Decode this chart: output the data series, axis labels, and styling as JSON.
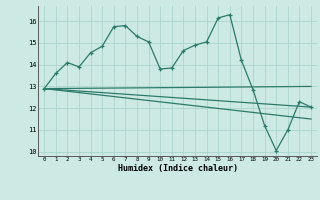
{
  "xlabel": "Humidex (Indice chaleur)",
  "bg_color": "#cce9e4",
  "grid_color": "#b0d8d0",
  "line_color": "#2d7a6a",
  "xlim": [
    -0.5,
    23.5
  ],
  "ylim": [
    9.8,
    16.7
  ],
  "yticks": [
    10,
    11,
    12,
    13,
    14,
    15,
    16
  ],
  "xticks": [
    0,
    1,
    2,
    3,
    4,
    5,
    6,
    7,
    8,
    9,
    10,
    11,
    12,
    13,
    14,
    15,
    16,
    17,
    18,
    19,
    20,
    21,
    22,
    23
  ],
  "series": [
    {
      "x": [
        0,
        1,
        2,
        3,
        4,
        5,
        6,
        7,
        8,
        9,
        10,
        11,
        12,
        13,
        14,
        15,
        16,
        17,
        18,
        19,
        20,
        21,
        22,
        23
      ],
      "y": [
        12.9,
        13.6,
        14.1,
        13.9,
        14.55,
        14.85,
        15.75,
        15.8,
        15.3,
        15.05,
        13.8,
        13.85,
        14.65,
        14.9,
        15.05,
        16.15,
        16.3,
        14.2,
        12.85,
        11.2,
        10.05,
        11.0,
        12.3,
        12.05
      ]
    },
    {
      "x": [
        0,
        23
      ],
      "y": [
        12.9,
        12.05
      ]
    },
    {
      "x": [
        0,
        23
      ],
      "y": [
        12.9,
        13.0
      ]
    },
    {
      "x": [
        0,
        23
      ],
      "y": [
        12.9,
        11.5
      ]
    }
  ]
}
